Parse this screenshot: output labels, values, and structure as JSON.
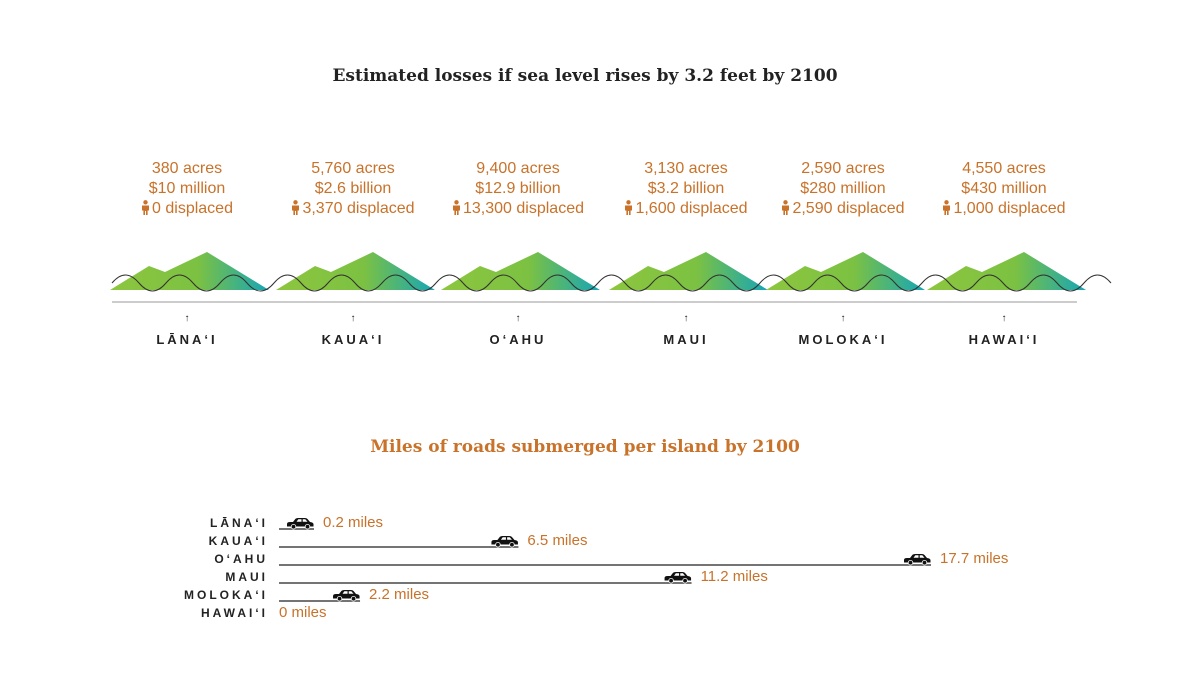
{
  "colors": {
    "accent": "#c8722a",
    "text": "#222222",
    "green": "#8dc63f",
    "teal": "#16a6b6"
  },
  "chart_data": [
    {
      "type": "table",
      "title": "Estimated losses if sea level rises by 3.2 feet by 2100",
      "categories": [
        "LĀNA‘I",
        "KAUA‘I",
        "O‘AHU",
        "MAUI",
        "MOLOKA‘I",
        "HAWAI‘I"
      ],
      "series": [
        {
          "name": "acres",
          "values": [
            380,
            5760,
            9400,
            3130,
            2590,
            4550
          ]
        },
        {
          "name": "value",
          "values": [
            "$10 million",
            "$2.6 billion",
            "$12.9 billion",
            "$3.2 billion",
            "$280 million",
            "$430 million"
          ]
        },
        {
          "name": "displaced",
          "values": [
            0,
            3370,
            13300,
            1600,
            2590,
            1000
          ]
        }
      ],
      "islands": [
        {
          "name": "LĀNA‘I",
          "acres": "380 acres",
          "value": "$10 million",
          "displaced": "0 displaced"
        },
        {
          "name": "KAUA‘I",
          "acres": "5,760 acres",
          "value": "$2.6 billion",
          "displaced": "3,370 displaced"
        },
        {
          "name": "O‘AHU",
          "acres": "9,400 acres",
          "value": "$12.9 billion",
          "displaced": "13,300 displaced"
        },
        {
          "name": "MAUI",
          "acres": "3,130 acres",
          "value": "$3.2 billion",
          "displaced": "1,600 displaced"
        },
        {
          "name": "MOLOKA‘I",
          "acres": "2,590 acres",
          "value": "$280 million",
          "displaced": "2,590 displaced"
        },
        {
          "name": "HAWAI‘I",
          "acres": "4,550 acres",
          "value": "$430 million",
          "displaced": "1,000 displaced"
        }
      ]
    },
    {
      "type": "bar",
      "title": "Miles of roads submerged per island by 2100",
      "categories": [
        "LĀNA‘I",
        "KAUA‘I",
        "O‘AHU",
        "MAUI",
        "MOLOKA‘I",
        "HAWAI‘I"
      ],
      "values": [
        0.2,
        6.5,
        17.7,
        11.2,
        2.2,
        0
      ],
      "value_labels": [
        "0.2 miles",
        "6.5 miles",
        "17.7 miles",
        "11.2 miles",
        "2.2 miles",
        "0 miles"
      ],
      "xlim": [
        0,
        17.7
      ]
    }
  ]
}
